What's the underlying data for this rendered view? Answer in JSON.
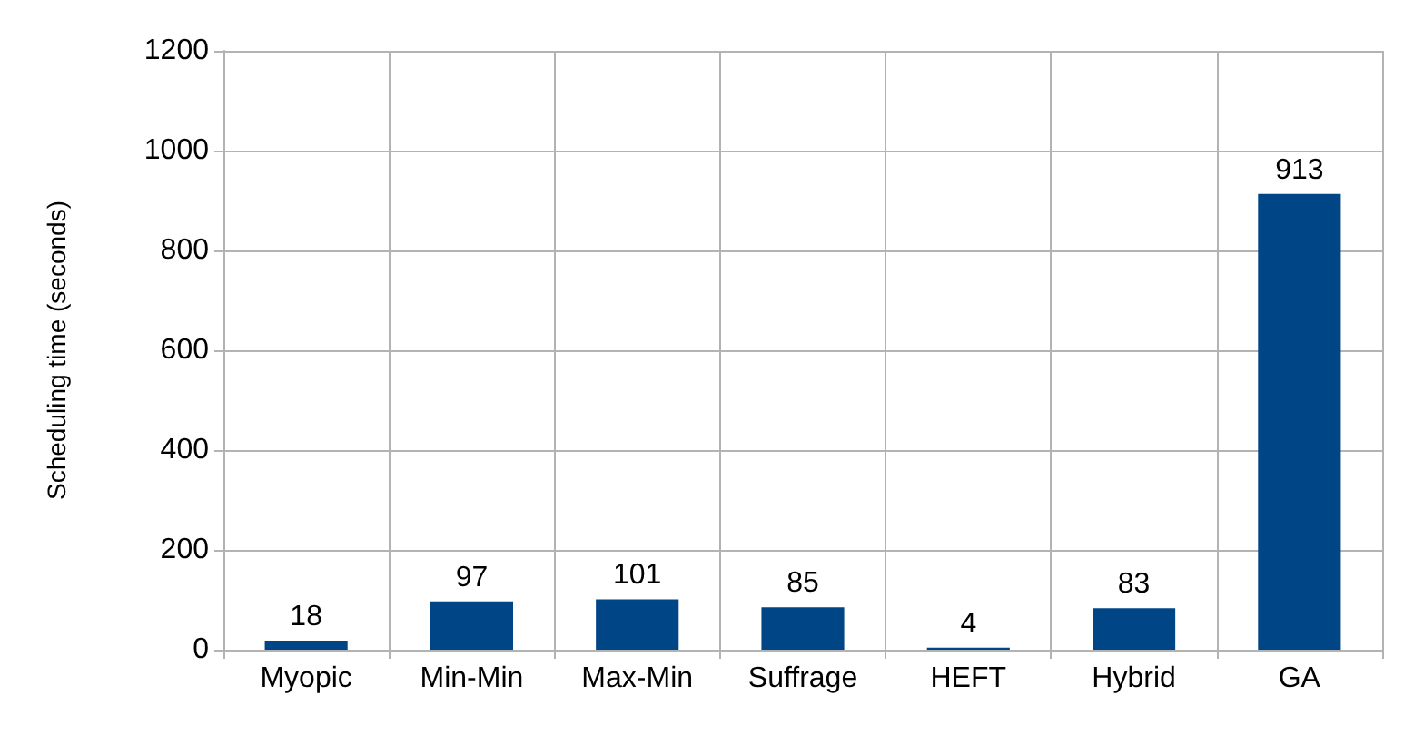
{
  "chart_data": {
    "type": "bar",
    "ylabel": "Scheduling time (seconds)",
    "categories": [
      "Myopic",
      "Min-Min",
      "Max-Min",
      "Suffrage",
      "HEFT",
      "Hybrid",
      "GA"
    ],
    "values": [
      18,
      97,
      101,
      85,
      4,
      83,
      913
    ],
    "color": "#004586",
    "ylim": [
      0,
      1200
    ],
    "yticks": [
      0,
      200,
      400,
      600,
      800,
      1000,
      1200
    ],
    "grid": true,
    "data_labels": true
  }
}
